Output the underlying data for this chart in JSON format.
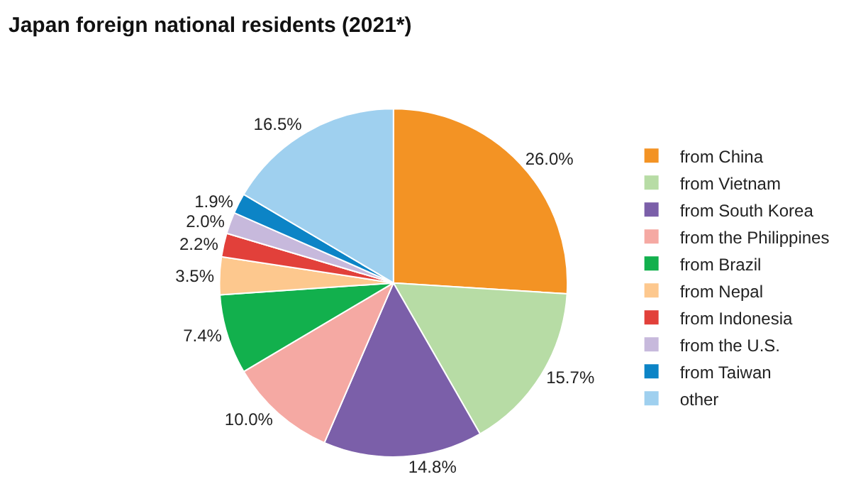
{
  "chart_data": {
    "type": "pie",
    "title": "Japan foreign national residents (2021*)",
    "categories": [
      "from China",
      "from Vietnam",
      "from South Korea",
      "from the Philippines",
      "from Brazil",
      "from Nepal",
      "from Indonesia",
      "from the U.S.",
      "from Taiwan",
      "other"
    ],
    "values": [
      26.0,
      15.7,
      14.8,
      10.0,
      7.4,
      3.5,
      2.2,
      2.0,
      1.9,
      16.5
    ],
    "value_labels": [
      "26.0%",
      "15.7%",
      "14.8%",
      "10.0%",
      "7.4%",
      "3.5%",
      "2.2%",
      "2.0%",
      "1.9%",
      "16.5%"
    ],
    "colors": [
      "#f39324",
      "#b7dca5",
      "#7b5fa9",
      "#f5a9a3",
      "#12b04d",
      "#fdc88e",
      "#e2403a",
      "#c7b9dc",
      "#0c84c6",
      "#9fd0ef"
    ],
    "legend": "right"
  }
}
